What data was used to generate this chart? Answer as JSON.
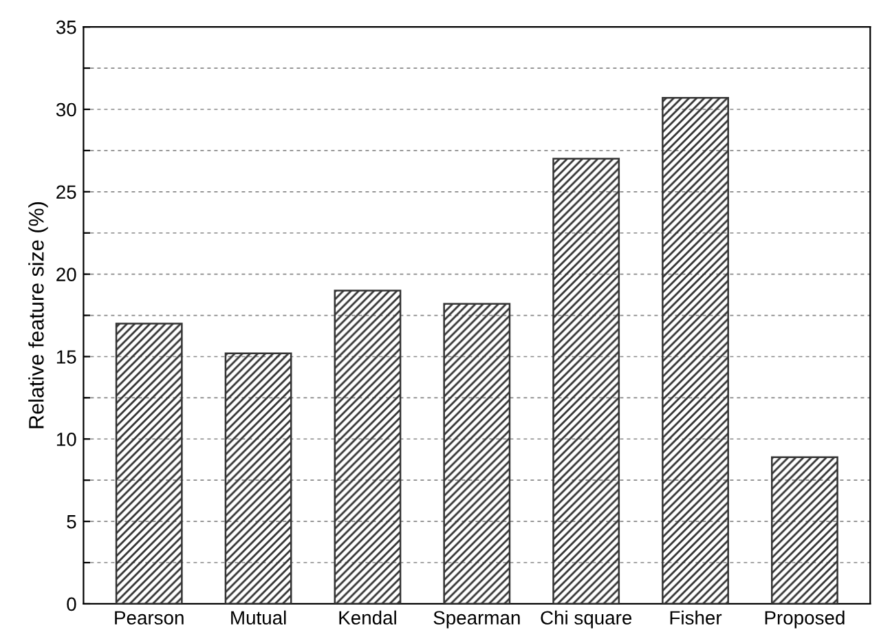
{
  "chart_data": {
    "type": "bar",
    "ylabel": "Relative feature size (%)",
    "categories": [
      "Pearson",
      "Mutual",
      "Kendal",
      "Spearman",
      "Chi square",
      "Fisher",
      "Proposed"
    ],
    "values": [
      17,
      15.2,
      19,
      18.2,
      27,
      30.7,
      8.9
    ],
    "color": "#333333",
    "ylim": [
      0,
      35
    ],
    "yticks": [
      0,
      {
        "value": 2.5,
        "label": null
      },
      5,
      {
        "value": 7.5,
        "label": null
      },
      10,
      {
        "value": 12.5,
        "label": null
      },
      15,
      {
        "value": 17.5,
        "label": null
      },
      20,
      {
        "value": 22.5,
        "label": null
      },
      25,
      {
        "value": 27.5,
        "label": null
      },
      30,
      {
        "value": 32.5,
        "label": null
      },
      35
    ],
    "grid": "y"
  }
}
